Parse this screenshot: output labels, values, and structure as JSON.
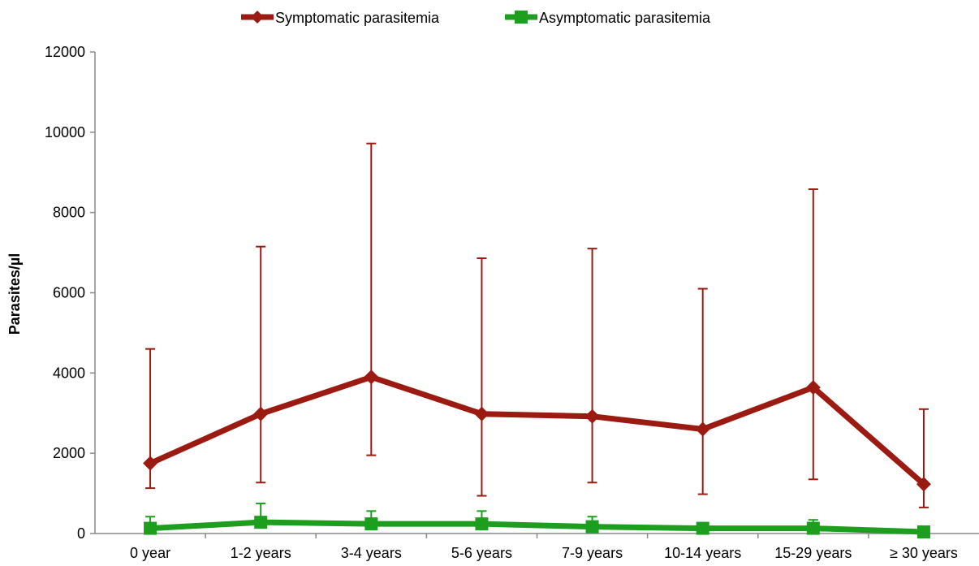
{
  "chart_data": {
    "type": "line",
    "title": "",
    "xlabel": "",
    "ylabel": "Parasites/µl",
    "ylim": [
      0,
      12000
    ],
    "yticks": [
      0,
      2000,
      4000,
      6000,
      8000,
      10000,
      12000
    ],
    "grid": false,
    "legend_position": "top-center",
    "categories": [
      "0 year",
      "1-2 years",
      "3-4 years",
      "5-6 years",
      "7-9 years",
      "10-14 years",
      "15-29 years",
      "≥ 30 years"
    ],
    "series": [
      {
        "name": "Symptomatic parasitemia",
        "color": "#9b1a12",
        "marker": "diamond",
        "values": [
          1750,
          2980,
          3900,
          2980,
          2920,
          2600,
          3640,
          1230
        ],
        "error_low": [
          1130,
          1270,
          1950,
          940,
          1270,
          980,
          1350,
          650
        ],
        "error_high": [
          4600,
          7150,
          9720,
          6860,
          7100,
          6100,
          8580,
          3100
        ]
      },
      {
        "name": "Asymptomatic parasitemia",
        "color": "#1e9e1e",
        "marker": "square",
        "values": [
          130,
          280,
          240,
          240,
          170,
          130,
          130,
          40
        ],
        "error_low": [
          130,
          280,
          240,
          240,
          170,
          130,
          130,
          40
        ],
        "error_high": [
          420,
          750,
          560,
          560,
          420,
          130,
          340,
          40
        ]
      }
    ]
  }
}
